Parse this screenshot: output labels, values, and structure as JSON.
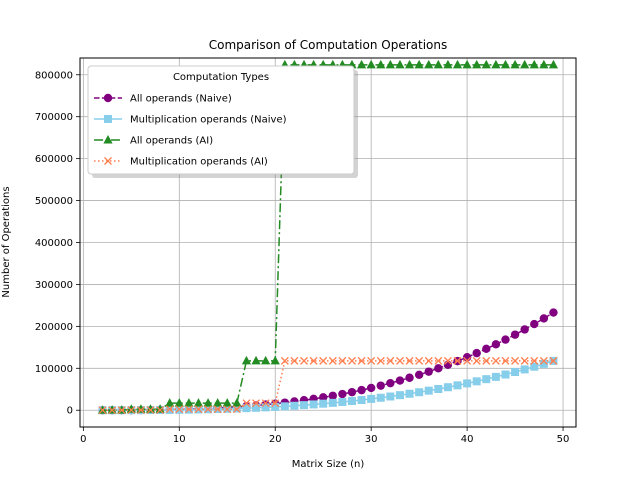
{
  "chart_data": {
    "type": "line",
    "title": "Comparison of Computation Operations",
    "xlabel": "Matrix Size (n)",
    "ylabel": "Number of Operations",
    "xlim": [
      -0.35,
      51.35
    ],
    "ylim": [
      -40000,
      840000
    ],
    "xticks": [
      0,
      10,
      20,
      30,
      40,
      50
    ],
    "yticks": [
      0,
      100000,
      200000,
      300000,
      400000,
      500000,
      600000,
      700000,
      800000
    ],
    "grid": true,
    "legend": {
      "title": "Computation Types",
      "position": "upper-left"
    },
    "x": [
      2,
      3,
      4,
      5,
      6,
      7,
      8,
      9,
      10,
      11,
      12,
      13,
      14,
      15,
      16,
      17,
      18,
      19,
      20,
      21,
      22,
      23,
      24,
      25,
      26,
      27,
      28,
      29,
      30,
      31,
      32,
      33,
      34,
      35,
      36,
      37,
      38,
      39,
      40,
      41,
      42,
      43,
      44,
      45,
      46,
      47,
      48,
      49
    ],
    "series": [
      {
        "name": "All operands (Naive)",
        "color": "#800080",
        "marker": "circle",
        "line_style": "dashed",
        "values": [
          12,
          45,
          112,
          225,
          396,
          637,
          960,
          1377,
          1900,
          2541,
          3312,
          4225,
          5292,
          6525,
          7936,
          9537,
          11340,
          13357,
          15600,
          18081,
          20812,
          23805,
          27072,
          30625,
          34476,
          38637,
          43120,
          47937,
          53100,
          58621,
          64512,
          70785,
          77452,
          84525,
          92016,
          99937,
          108300,
          117117,
          126400,
          136161,
          146412,
          157165,
          168432,
          180225,
          192556,
          205437,
          218880,
          232897
        ]
      },
      {
        "name": "Multiplication operands (Naive)",
        "color": "#87ceeb",
        "marker": "square",
        "line_style": "solid",
        "values": [
          8,
          27,
          64,
          125,
          216,
          343,
          512,
          729,
          1000,
          1331,
          1728,
          2197,
          2744,
          3375,
          4096,
          4913,
          5832,
          6859,
          8000,
          9261,
          10648,
          12167,
          13824,
          15625,
          17576,
          19683,
          21952,
          24389,
          27000,
          29791,
          32768,
          35937,
          39304,
          42875,
          46656,
          50653,
          54872,
          59319,
          64000,
          68921,
          74088,
          79507,
          85184,
          91125,
          97336,
          103823,
          110592,
          117649
        ]
      },
      {
        "name": "All operands (AI)",
        "color": "#228b22",
        "marker": "triangle",
        "line_style": "dashdot",
        "values": [
          25,
          343,
          343,
          2401,
          2401,
          2401,
          2401,
          16807,
          16807,
          16807,
          16807,
          16807,
          16807,
          16807,
          16807,
          117649,
          117649,
          117649,
          117649,
          823543,
          823543,
          823543,
          823543,
          823543,
          823543,
          823543,
          823543,
          823543,
          823543,
          823543,
          823543,
          823543,
          823543,
          823543,
          823543,
          823543,
          823543,
          823543,
          823543,
          823543,
          823543,
          823543,
          823543,
          823543,
          823543,
          823543,
          823543,
          823543
        ]
      },
      {
        "name": "Multiplication operands (AI)",
        "color": "#ff7f50",
        "marker": "x",
        "line_style": "dotted",
        "values": [
          7,
          49,
          49,
          343,
          343,
          343,
          343,
          2401,
          2401,
          2401,
          2401,
          2401,
          2401,
          2401,
          2401,
          16807,
          16807,
          16807,
          16807,
          117649,
          117649,
          117649,
          117649,
          117649,
          117649,
          117649,
          117649,
          117649,
          117649,
          117649,
          117649,
          117649,
          117649,
          117649,
          117649,
          117649,
          117649,
          117649,
          117649,
          117649,
          117649,
          117649,
          117649,
          117649,
          117649,
          117649,
          117649,
          117649
        ]
      }
    ]
  }
}
